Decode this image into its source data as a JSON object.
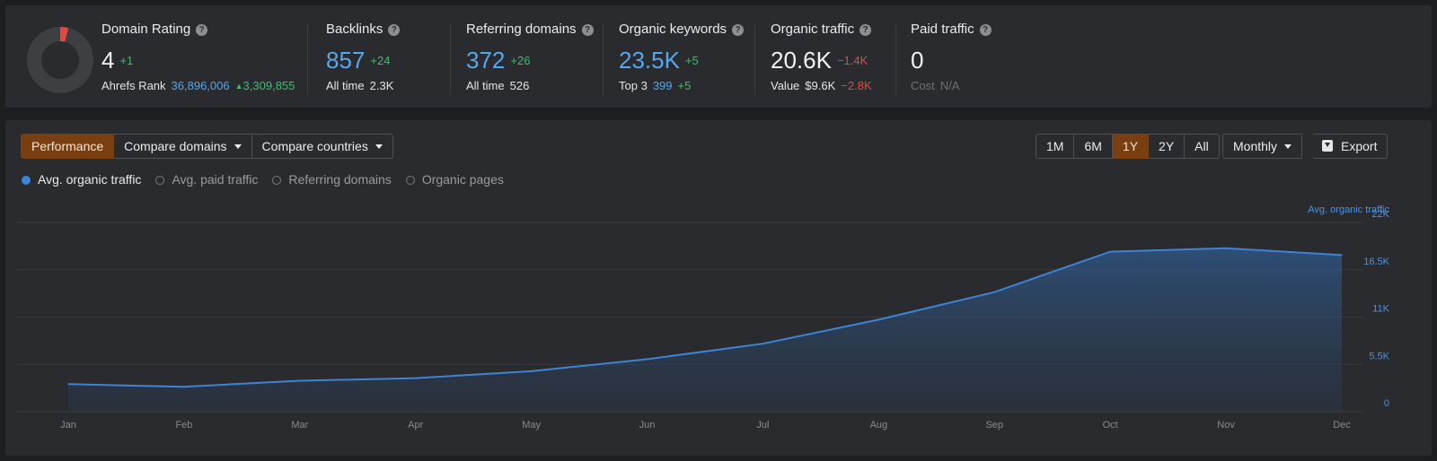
{
  "metrics": {
    "domain_rating": {
      "label": "Domain Rating",
      "value": "4",
      "delta": "+1",
      "sub_label": "Ahrefs Rank",
      "sub_value": "36,896,006",
      "sub_delta": "3,309,855",
      "donut_fraction": 0.04
    },
    "backlinks": {
      "label": "Backlinks",
      "value": "857",
      "delta": "+24",
      "sub_label": "All time",
      "sub_value": "2.3K"
    },
    "referring_domains": {
      "label": "Referring domains",
      "value": "372",
      "delta": "+26",
      "sub_label": "All time",
      "sub_value": "526"
    },
    "organic_keywords": {
      "label": "Organic keywords",
      "value": "23.5K",
      "delta": "+5",
      "sub_label": "Top 3",
      "sub_value": "399",
      "sub_delta": "+5"
    },
    "organic_traffic": {
      "label": "Organic traffic",
      "value": "20.6K",
      "delta": "−1.4K",
      "sub_label": "Value",
      "sub_value": "$9.6K",
      "sub_delta": "−2.8K"
    },
    "paid_traffic": {
      "label": "Paid traffic",
      "value": "0",
      "sub_label": "Cost",
      "sub_value": "N/A"
    }
  },
  "toolbar": {
    "tabs": [
      "Performance",
      "Compare domains",
      "Compare countries"
    ],
    "active_tab": "Performance",
    "ranges": [
      "1M",
      "6M",
      "1Y",
      "2Y",
      "All"
    ],
    "active_range": "1Y",
    "interval": "Monthly",
    "export_label": "Export"
  },
  "legend": [
    {
      "label": "Avg. organic traffic",
      "on": true
    },
    {
      "label": "Avg. paid traffic",
      "on": false
    },
    {
      "label": "Referring domains",
      "on": false
    },
    {
      "label": "Organic pages",
      "on": false
    }
  ],
  "colors": {
    "accent": "#7a3f10",
    "line": "#3d84d6",
    "positive": "#3fbf6d",
    "negative": "#e5483e",
    "link": "#56a8ee"
  },
  "chart_data": {
    "type": "area",
    "x": [
      "Jan",
      "Feb",
      "Mar",
      "Apr",
      "May",
      "Jun",
      "Jul",
      "Aug",
      "Sep",
      "Oct",
      "Nov",
      "Dec"
    ],
    "series": [
      {
        "name": "Avg. organic traffic",
        "values": [
          3200,
          2900,
          3600,
          3900,
          4700,
          6100,
          7900,
          10700,
          13900,
          18600,
          19000,
          18200
        ]
      }
    ],
    "yticks": [
      "0",
      "5.5K",
      "11K",
      "16.5K",
      "22K"
    ],
    "ytick_values": [
      0,
      5500,
      11000,
      16500,
      22000
    ],
    "ylim": [
      0,
      22000
    ],
    "ylabel": "Avg. organic traffic",
    "grid": true
  }
}
